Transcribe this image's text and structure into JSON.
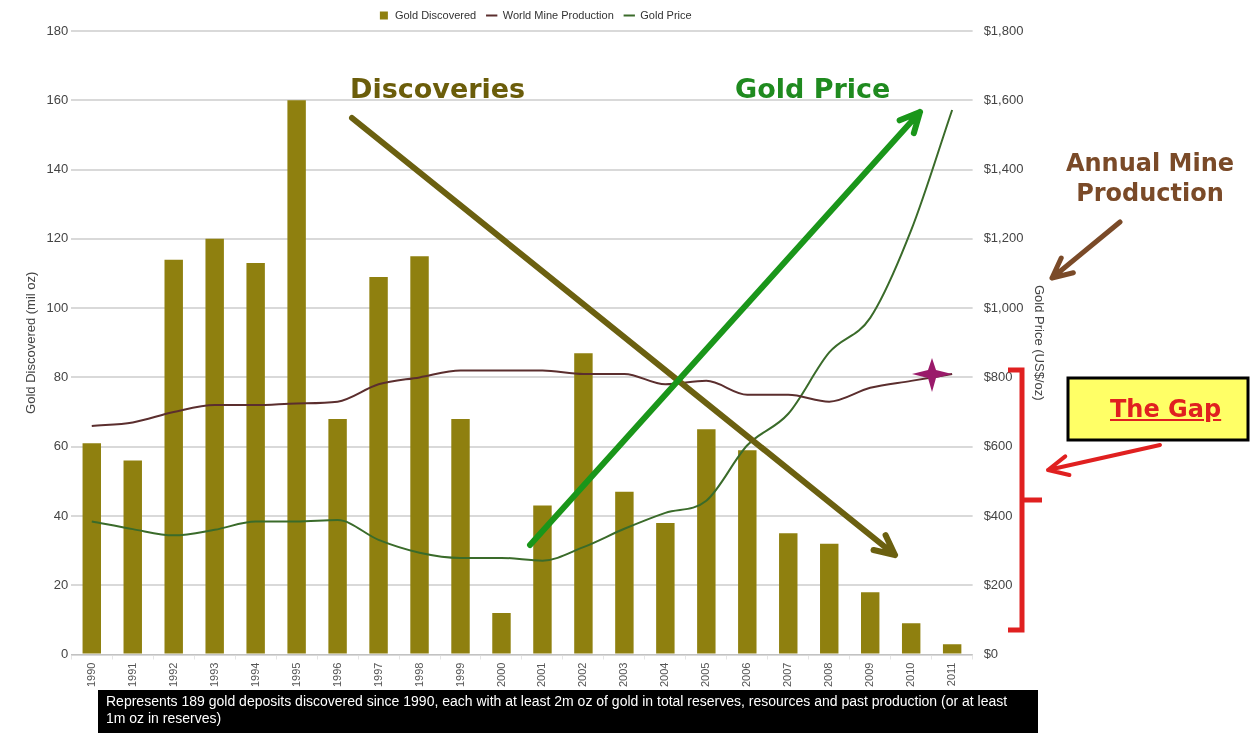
{
  "chart_data": {
    "type": "bar",
    "categories": [
      "1990",
      "1991",
      "1992",
      "1993",
      "1994",
      "1995",
      "1996",
      "1997",
      "1998",
      "1999",
      "2000",
      "2001",
      "2002",
      "2003",
      "2004",
      "2005",
      "2006",
      "2007",
      "2008",
      "2009",
      "2010",
      "2011"
    ],
    "series": [
      {
        "name": "Gold Discovered",
        "color": "#8f800f",
        "values": [
          61,
          56,
          114,
          120,
          113,
          160,
          68,
          109,
          115,
          68,
          12,
          43,
          87,
          47,
          38,
          65,
          59,
          35,
          32,
          18,
          9,
          3
        ]
      },
      {
        "name": "World Mine Production",
        "type": "line",
        "color": "#5b2e2e",
        "values": [
          66,
          67,
          70,
          72,
          72,
          72.5,
          73,
          78,
          80,
          82,
          82,
          82,
          81,
          81,
          78,
          79,
          75,
          75,
          73,
          77,
          79,
          81
        ]
      },
      {
        "name": "Gold Price",
        "type": "line",
        "axis": "y2",
        "color": "#3a6b2a",
        "values": [
          384,
          362,
          344,
          360,
          384,
          384,
          388,
          331,
          294,
          279,
          279,
          271,
          310,
          363,
          409,
          444,
          604,
          695,
          872,
          972,
          1225,
          1572
        ]
      }
    ],
    "ylabel": "Gold Discovered (mil oz)",
    "y2label": "Gold Price (US$/oz)",
    "ylim": [
      0,
      180
    ],
    "yticks": [
      0,
      20,
      40,
      60,
      80,
      100,
      120,
      140,
      160,
      180
    ],
    "y2lim": [
      0,
      1800
    ],
    "y2ticks": [
      {
        "value": 0,
        "label": "$0"
      },
      {
        "value": 200,
        "label": "$200"
      },
      {
        "value": 400,
        "label": "$400"
      },
      {
        "value": 600,
        "label": "$600"
      },
      {
        "value": 800,
        "label": "$800"
      },
      {
        "value": 1000,
        "label": "$1,000"
      },
      {
        "value": 1200,
        "label": "$1,200"
      },
      {
        "value": 1400,
        "label": "$1,400"
      },
      {
        "value": 1600,
        "label": "$1,600"
      },
      {
        "value": 1800,
        "label": "$1,800"
      }
    ],
    "grid": "y",
    "legend": "top",
    "marker": "none",
    "annotations": [
      "Discoveries",
      "Gold Price",
      "Annual Mine Production",
      "The Gap",
      "Represents 189 gold deposits discovered since 1990, each with at least 2m oz of gold in total reserves, resources and past production (or at least 1m oz in reserves)"
    ]
  }
}
